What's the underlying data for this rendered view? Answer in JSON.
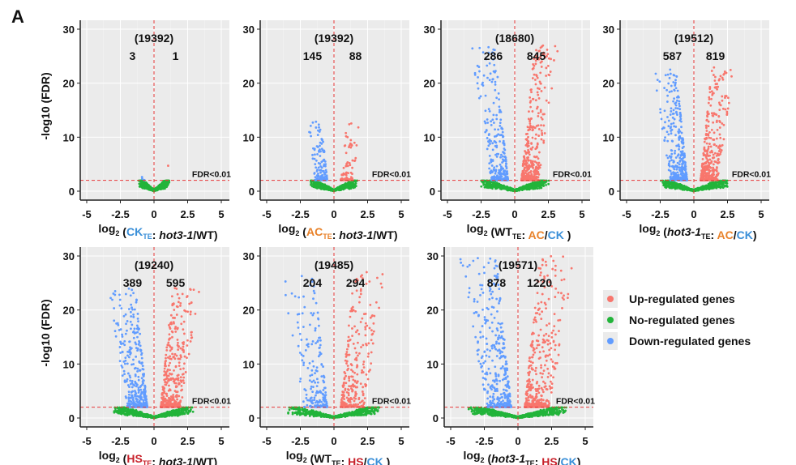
{
  "figure_label": "A",
  "legend": [
    {
      "label": "Up-regulated genes",
      "color": "#F8766D"
    },
    {
      "label": "No-regulated genes",
      "color": "#22B43A"
    },
    {
      "label": "Down-regulated genes",
      "color": "#619CFF"
    }
  ],
  "chart_data": [
    {
      "type": "scatter",
      "title": "(19392)",
      "down": "3",
      "up": "1",
      "threshold_label": "FDR<0.01",
      "threshold": 2,
      "ylabel": "-log10 (FDR)",
      "xlim": [
        -5.5,
        5.5
      ],
      "ylim": [
        -1.5,
        31
      ],
      "xticks": [
        "-5",
        "-2.5",
        "0",
        "2.5",
        "5"
      ],
      "yticks": [
        "0",
        "10",
        "20",
        "30"
      ],
      "max_y": 6,
      "spread": 1,
      "xlabel": [
        {
          "t": "log"
        },
        {
          "t": "2",
          "s": "sub"
        },
        {
          "t": " ("
        },
        {
          "t": "CK",
          "c": "#3a8fd8"
        },
        {
          "t": "TE",
          "s": "sub",
          "c": "#3a8fd8"
        },
        {
          "t": ": "
        },
        {
          "t": "hot3-1",
          "s": "i"
        },
        {
          "t": "/WT)"
        }
      ]
    },
    {
      "type": "scatter",
      "title": "(19392)",
      "down": "145",
      "up": "88",
      "threshold_label": "FDR<0.01",
      "threshold": 2,
      "ylabel": "",
      "xlim": [
        -5.5,
        5.5
      ],
      "ylim": [
        -1.5,
        31
      ],
      "xticks": [
        "-5",
        "-2.5",
        "0",
        "2.5",
        "5"
      ],
      "yticks": [
        "0",
        "10",
        "20",
        "30"
      ],
      "max_y": 13,
      "spread": 1.6,
      "xlabel": [
        {
          "t": "log"
        },
        {
          "t": "2",
          "s": "sub"
        },
        {
          "t": " ("
        },
        {
          "t": "AC",
          "c": "#e8822a"
        },
        {
          "t": "TE",
          "s": "sub",
          "c": "#e8822a"
        },
        {
          "t": ": "
        },
        {
          "t": "hot3-1",
          "s": "i"
        },
        {
          "t": "/WT)"
        }
      ]
    },
    {
      "type": "scatter",
      "title": "(18680)",
      "down": "286",
      "up": "845",
      "threshold_label": "FDR<0.01",
      "threshold": 2,
      "ylabel": "",
      "xlim": [
        -5.5,
        5.5
      ],
      "ylim": [
        -1.5,
        31
      ],
      "xticks": [
        "-5",
        "-2.5",
        "0",
        "2.5",
        "5"
      ],
      "yticks": [
        "0",
        "10",
        "20",
        "30"
      ],
      "max_y": 27,
      "spread": 2.2,
      "xlabel": [
        {
          "t": "log"
        },
        {
          "t": "2",
          "s": "sub"
        },
        {
          "t": " (WT"
        },
        {
          "t": "TE",
          "s": "sub"
        },
        {
          "t": ": "
        },
        {
          "t": "AC",
          "c": "#e8822a"
        },
        {
          "t": "/"
        },
        {
          "t": "CK",
          "c": "#3a8fd8"
        },
        {
          "t": " )"
        }
      ]
    },
    {
      "type": "scatter",
      "title": "(19512)",
      "down": "587",
      "up": "819",
      "threshold_label": "FDR<0.01",
      "threshold": 2,
      "ylabel": "",
      "xlim": [
        -5.5,
        5.5
      ],
      "ylim": [
        -1.5,
        31
      ],
      "xticks": [
        "-5",
        "-2.5",
        "0",
        "2.5",
        "5"
      ],
      "yticks": [
        "0",
        "10",
        "20",
        "30"
      ],
      "max_y": 23,
      "spread": 2.2,
      "xlabel": [
        {
          "t": "log"
        },
        {
          "t": "2",
          "s": "sub"
        },
        {
          "t": " ("
        },
        {
          "t": "hot3-1",
          "s": "i"
        },
        {
          "t": "TE",
          "s": "sub"
        },
        {
          "t": ": "
        },
        {
          "t": "AC",
          "c": "#e8822a"
        },
        {
          "t": "/"
        },
        {
          "t": "CK",
          "c": "#3a8fd8"
        },
        {
          "t": ")"
        }
      ]
    },
    {
      "type": "scatter",
      "title": "(19240)",
      "down": "389",
      "up": "595",
      "threshold_label": "FDR<0.01",
      "threshold": 2,
      "ylabel": "-log10 (FDR)",
      "xlim": [
        -5.5,
        5.5
      ],
      "ylim": [
        -1.5,
        31
      ],
      "xticks": [
        "-5",
        "-2.5",
        "0",
        "2.5",
        "5"
      ],
      "yticks": [
        "0",
        "10",
        "20",
        "30"
      ],
      "max_y": 24,
      "spread": 2.6,
      "xlabel": [
        {
          "t": "log"
        },
        {
          "t": "2",
          "s": "sub"
        },
        {
          "t": " ("
        },
        {
          "t": "HS",
          "c": "#c8202a"
        },
        {
          "t": "TE",
          "s": "sub",
          "c": "#c8202a"
        },
        {
          "t": ": "
        },
        {
          "t": "hot3-1",
          "s": "i"
        },
        {
          "t": "/WT)"
        }
      ]
    },
    {
      "type": "scatter",
      "title": "(19485)",
      "down": "204",
      "up": "294",
      "threshold_label": "FDR<0.01",
      "threshold": 2,
      "ylabel": "",
      "xlim": [
        -5.5,
        5.5
      ],
      "ylim": [
        -1.5,
        31
      ],
      "xticks": [
        "-5",
        "-2.5",
        "0",
        "2.5",
        "5"
      ],
      "yticks": [
        "0",
        "10",
        "20",
        "30"
      ],
      "max_y": 27,
      "spread": 3,
      "xlabel": [
        {
          "t": "log"
        },
        {
          "t": "2",
          "s": "sub"
        },
        {
          "t": " (WT"
        },
        {
          "t": "TE",
          "s": "sub"
        },
        {
          "t": ": "
        },
        {
          "t": "HS",
          "c": "#c8202a"
        },
        {
          "t": "/"
        },
        {
          "t": "CK",
          "c": "#3a8fd8"
        },
        {
          "t": " )"
        }
      ]
    },
    {
      "type": "scatter",
      "title": "(19571)",
      "down": "878",
      "up": "1220",
      "threshold_label": "FDR<0.01",
      "threshold": 2,
      "ylabel": "",
      "xlim": [
        -5.5,
        5.5
      ],
      "ylim": [
        -1.5,
        31
      ],
      "xticks": [
        "-5",
        "-2.5",
        "0",
        "2.5",
        "5"
      ],
      "yticks": [
        "0",
        "10",
        "20",
        "30"
      ],
      "max_y": 30,
      "spread": 3.2,
      "xlabel": [
        {
          "t": "log"
        },
        {
          "t": "2",
          "s": "sub"
        },
        {
          "t": " ("
        },
        {
          "t": "hot3-1",
          "s": "i"
        },
        {
          "t": "TE",
          "s": "sub"
        },
        {
          "t": ": "
        },
        {
          "t": "HS",
          "c": "#c8202a"
        },
        {
          "t": "/"
        },
        {
          "t": "CK",
          "c": "#3a8fd8"
        },
        {
          "t": ")"
        }
      ]
    }
  ]
}
